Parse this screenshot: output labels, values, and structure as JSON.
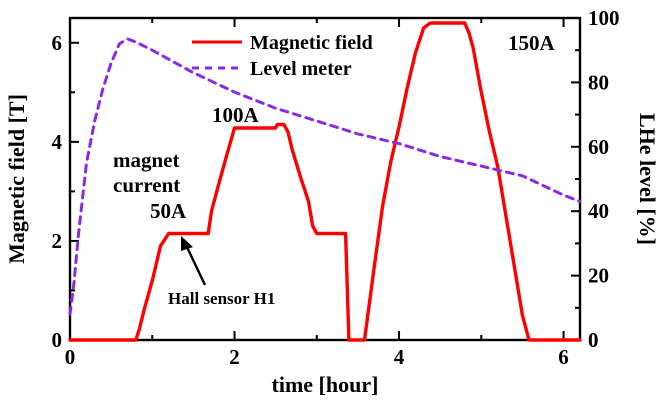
{
  "chart_data": {
    "type": "line",
    "title": "",
    "xlabel": "time [hour]",
    "ylabel_left": "Magnetic field [T]",
    "ylabel_right": "LHe level [%]",
    "xlim": [
      0,
      6.2
    ],
    "ylim_left": [
      0,
      6.5
    ],
    "ylim_right": [
      0,
      100
    ],
    "x_ticks": [
      0,
      2,
      4,
      6
    ],
    "y_left_ticks": [
      0,
      2,
      4,
      6
    ],
    "y_right_ticks": [
      0,
      20,
      40,
      60,
      80,
      100
    ],
    "grid": false,
    "legend_position": "top-center",
    "series": [
      {
        "name": "Magnetic field",
        "axis": "left",
        "style": "solid",
        "color": "#ff0000",
        "x": [
          0,
          0.8,
          0.84,
          0.9,
          1.0,
          1.1,
          1.2,
          1.5,
          1.68,
          1.72,
          1.8,
          1.9,
          2.0,
          2.5,
          2.52,
          2.6,
          2.65,
          2.7,
          2.8,
          2.9,
          2.95,
          3.0,
          3.35,
          3.39,
          3.5,
          3.58,
          3.62,
          3.7,
          3.8,
          3.9,
          4.0,
          4.1,
          4.2,
          4.3,
          4.38,
          4.8,
          4.85,
          4.9,
          5.0,
          5.1,
          5.2,
          5.3,
          5.4,
          5.5,
          5.58,
          5.62,
          6.2
        ],
        "y": [
          0,
          0,
          0.2,
          0.6,
          1.2,
          1.9,
          2.15,
          2.15,
          2.15,
          2.6,
          3.1,
          3.7,
          4.28,
          4.28,
          4.35,
          4.35,
          4.2,
          3.85,
          3.3,
          2.8,
          2.3,
          2.15,
          2.15,
          0,
          0,
          0,
          0.5,
          1.5,
          2.7,
          3.6,
          4.3,
          5.1,
          5.8,
          6.3,
          6.4,
          6.4,
          6.2,
          5.9,
          5.0,
          4.2,
          3.5,
          2.5,
          1.5,
          0.5,
          0,
          0,
          0
        ]
      },
      {
        "name": "Level meter",
        "axis": "right",
        "style": "dashed",
        "color": "#8a2be2",
        "x": [
          0,
          0.05,
          0.1,
          0.2,
          0.3,
          0.4,
          0.5,
          0.6,
          0.7,
          0.8,
          1.0,
          1.5,
          2.0,
          2.5,
          3.0,
          3.5,
          4.0,
          4.5,
          5.0,
          5.5,
          6.0,
          6.2
        ],
        "y": [
          8,
          18,
          32,
          55,
          68,
          78,
          86,
          92,
          93.5,
          92.5,
          90,
          83,
          77,
          72,
          68,
          64,
          61,
          57,
          54,
          51,
          45,
          43
        ]
      }
    ],
    "annotations": {
      "label_150a": "150A",
      "label_100a": "100A",
      "label_50a": "50A",
      "magnet_line1": "magnet",
      "magnet_line2": "current",
      "hall_sensor": "Hall sensor H1"
    }
  }
}
